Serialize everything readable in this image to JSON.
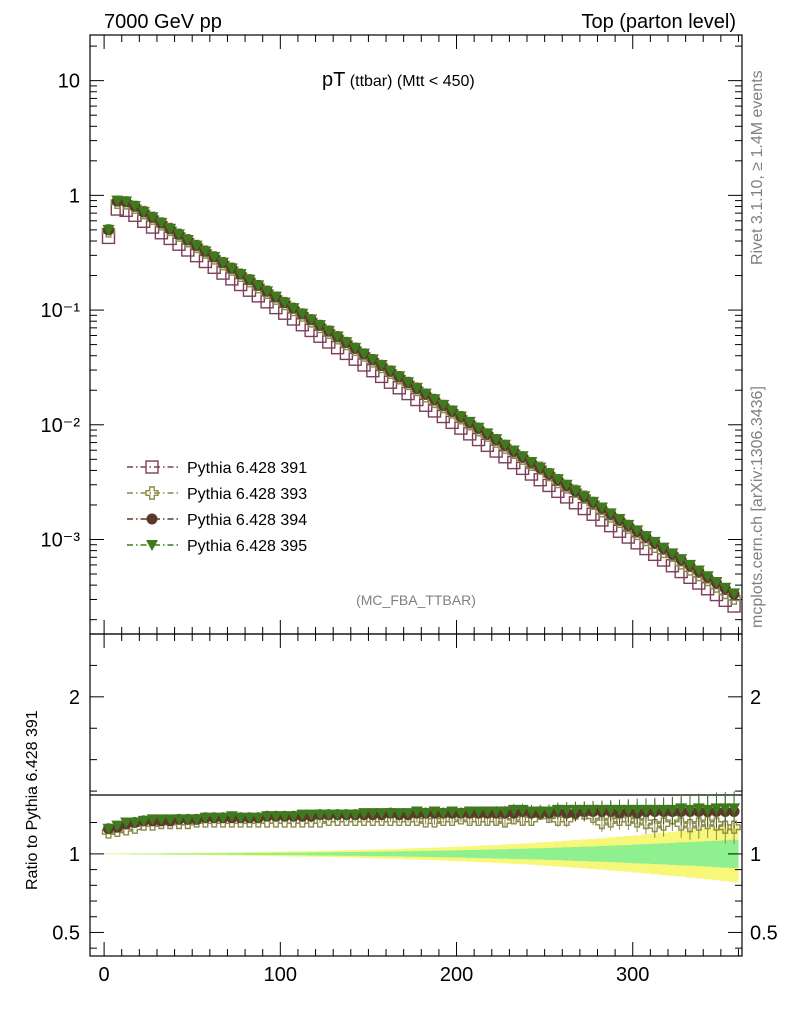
{
  "header": {
    "left": "7000 GeV pp",
    "right": "Top (parton level)"
  },
  "plot": {
    "title_main": "pT",
    "title_sub": " (ttbar) (Mtt < 450)",
    "analysis_tag": "(MC_FBA_TTBAR)",
    "side_text_1": "Rivet 3.1.10, ≥ 1.4M events",
    "side_text_2": "mcplots.cern.ch [arXiv:1306.3436]",
    "ratio_ylabel": "Ratio to Pythia 6.428 391"
  },
  "chart_data": [
    {
      "type": "scatter",
      "panel": "main",
      "yscale": "log",
      "xlim": [
        -8,
        362
      ],
      "ylim": [
        0.00015,
        25
      ],
      "ytick_labels": [
        "10",
        "1",
        "10⁻¹",
        "10⁻²",
        "10⁻³"
      ],
      "ytick_values": [
        10,
        1,
        0.1,
        0.01,
        0.001
      ],
      "legend_position": "lower-left",
      "x": [
        2.5,
        7.5,
        12.5,
        17.5,
        22.5,
        27.5,
        32.5,
        37.5,
        42.5,
        47.5,
        52.5,
        57.5,
        62.5,
        67.5,
        72.5,
        77.5,
        82.5,
        87.5,
        92.5,
        97.5,
        102.5,
        107.5,
        112.5,
        117.5,
        122.5,
        127.5,
        132.5,
        137.5,
        142.5,
        147.5,
        152.5,
        157.5,
        162.5,
        167.5,
        172.5,
        177.5,
        182.5,
        187.5,
        192.5,
        197.5,
        202.5,
        207.5,
        212.5,
        217.5,
        222.5,
        227.5,
        232.5,
        237.5,
        242.5,
        247.5,
        252.5,
        257.5,
        262.5,
        267.5,
        272.5,
        277.5,
        282.5,
        287.5,
        292.5,
        297.5,
        302.5,
        307.5,
        312.5,
        317.5,
        322.5,
        327.5,
        332.5,
        337.5,
        342.5,
        347.5,
        352.5,
        357.5
      ],
      "series": [
        {
          "name": "Pythia 6.428 391",
          "marker": "open-square",
          "color": "#7b3f5a",
          "values": [
            0.43,
            0.76,
            0.74,
            0.67,
            0.594,
            0.529,
            0.472,
            0.421,
            0.375,
            0.334,
            0.298,
            0.265,
            0.236,
            0.21,
            0.187,
            0.167,
            0.149,
            0.133,
            0.118,
            0.105,
            0.0939,
            0.0836,
            0.0745,
            0.0664,
            0.0592,
            0.0527,
            0.047,
            0.0419,
            0.0373,
            0.0332,
            0.0296,
            0.0264,
            0.0235,
            0.021,
            0.0187,
            0.0166,
            0.0148,
            0.0132,
            0.0118,
            0.0105,
            0.00935,
            0.00833,
            0.00743,
            0.00662,
            0.0059,
            0.00526,
            0.00468,
            0.00417,
            0.00372,
            0.00332,
            0.00296,
            0.00263,
            0.00235,
            0.00209,
            0.00186,
            0.00166,
            0.00148,
            0.00132,
            0.00118,
            0.00105,
            0.000935,
            0.000833,
            0.000742,
            0.000662,
            0.00059,
            0.000525,
            0.000468,
            0.000417,
            0.000372,
            0.000331,
            0.000295,
            0.000263
          ]
        },
        {
          "name": "Pythia 6.428 393",
          "marker": "open-cross",
          "color": "#8b8b4a",
          "values": [
            0.49,
            0.87,
            0.86,
            0.787,
            0.707,
            0.632,
            0.564,
            0.505,
            0.45,
            0.402,
            0.359,
            0.32,
            0.285,
            0.254,
            0.227,
            0.201,
            0.18,
            0.16,
            0.143,
            0.127,
            0.114,
            0.101,
            0.0905,
            0.0805,
            0.0718,
            0.0642,
            0.0573,
            0.0511,
            0.0455,
            0.0405,
            0.036,
            0.0322,
            0.0287,
            0.0257,
            0.0229,
            0.0203,
            0.0179,
            0.016,
            0.0144,
            0.0129,
            0.0115,
            0.0102,
            0.00905,
            0.00811,
            0.0072,
            0.00638,
            0.00575,
            0.00511,
            0.00453,
            0.00418,
            0.00367,
            0.0032,
            0.00287,
            0.00263,
            0.00234,
            0.00206,
            0.00178,
            0.0016,
            0.00144,
            0.00128,
            0.00113,
            0.001,
            0.000872,
            0.000786,
            0.000728,
            0.000624,
            0.000554,
            0.000495,
            0.000448,
            0.000393,
            0.000345,
            0.000308
          ]
        },
        {
          "name": "Pythia 6.428 394",
          "marker": "filled-circle",
          "color": "#5a3a28",
          "values": [
            0.5,
            0.89,
            0.878,
            0.801,
            0.718,
            0.642,
            0.573,
            0.511,
            0.457,
            0.408,
            0.365,
            0.325,
            0.291,
            0.259,
            0.231,
            0.206,
            0.184,
            0.164,
            0.146,
            0.13,
            0.116,
            0.104,
            0.0926,
            0.0825,
            0.0738,
            0.0658,
            0.0587,
            0.0523,
            0.0466,
            0.0415,
            0.0371,
            0.033,
            0.0295,
            0.0262,
            0.0234,
            0.0209,
            0.0186,
            0.0167,
            0.0148,
            0.0132,
            0.0118,
            0.0105,
            0.00937,
            0.00836,
            0.00744,
            0.00664,
            0.00591,
            0.00528,
            0.0047,
            0.00419,
            0.00374,
            0.00333,
            0.00297,
            0.00264,
            0.00236,
            0.00211,
            0.00188,
            0.00167,
            0.00149,
            0.00133,
            0.00118,
            0.00106,
            0.000939,
            0.000838,
            0.000748,
            0.000666,
            0.000593,
            0.000528,
            0.000471,
            0.00042,
            0.000375,
            0.000334
          ]
        },
        {
          "name": "Pythia 6.428 395",
          "marker": "filled-triangle-down",
          "color": "#3f7a1f",
          "values": [
            0.5,
            0.9,
            0.885,
            0.806,
            0.72,
            0.644,
            0.575,
            0.512,
            0.457,
            0.408,
            0.365,
            0.325,
            0.29,
            0.259,
            0.231,
            0.206,
            0.184,
            0.164,
            0.146,
            0.131,
            0.116,
            0.104,
            0.0928,
            0.0828,
            0.0739,
            0.0659,
            0.0588,
            0.0524,
            0.0468,
            0.0417,
            0.0372,
            0.0332,
            0.0296,
            0.0264,
            0.0235,
            0.021,
            0.0187,
            0.0167,
            0.0149,
            0.0133,
            0.0118,
            0.0106,
            0.00943,
            0.00841,
            0.0075,
            0.00669,
            0.00597,
            0.00532,
            0.00474,
            0.00423,
            0.00377,
            0.00336,
            0.003,
            0.00267,
            0.00238,
            0.00213,
            0.0019,
            0.00169,
            0.00151,
            0.00134,
            0.0012,
            0.00107,
            0.000953,
            0.000849,
            0.000757,
            0.000675,
            0.000601,
            0.000536,
            0.000478,
            0.000426,
            0.00038,
            0.000339
          ]
        }
      ]
    },
    {
      "type": "scatter",
      "panel": "ratio",
      "ylabel": "Ratio to Pythia 6.428 391",
      "xlim": [
        -8,
        362
      ],
      "ylim": [
        0.35,
        2.4
      ],
      "ytick_labels": [
        "2",
        "1",
        "0.5"
      ],
      "ytick_values": [
        2,
        1,
        0.5
      ],
      "xtick_labels": [
        "0",
        "100",
        "200",
        "300"
      ],
      "xtick_values": [
        0,
        100,
        200,
        300
      ],
      "reference_line": 1,
      "band_colors": [
        "#f7f77a",
        "#8ef08e"
      ],
      "band_outer_halfwidth": [
        0.002,
        0.002,
        0.003,
        0.003,
        0.004,
        0.004,
        0.005,
        0.005,
        0.006,
        0.006,
        0.007,
        0.007,
        0.008,
        0.009,
        0.009,
        0.01,
        0.011,
        0.012,
        0.013,
        0.014,
        0.015,
        0.016,
        0.017,
        0.018,
        0.019,
        0.02,
        0.022,
        0.023,
        0.024,
        0.026,
        0.027,
        0.029,
        0.03,
        0.032,
        0.034,
        0.036,
        0.038,
        0.04,
        0.042,
        0.044,
        0.047,
        0.049,
        0.052,
        0.054,
        0.057,
        0.06,
        0.063,
        0.066,
        0.069,
        0.073,
        0.076,
        0.08,
        0.084,
        0.088,
        0.092,
        0.096,
        0.1,
        0.105,
        0.11,
        0.114,
        0.119,
        0.124,
        0.13,
        0.135,
        0.14,
        0.145,
        0.151,
        0.156,
        0.162,
        0.168,
        0.174,
        0.18
      ],
      "band_inner_halfwidth": [
        0.001,
        0.001,
        0.001,
        0.002,
        0.002,
        0.002,
        0.002,
        0.003,
        0.003,
        0.003,
        0.003,
        0.004,
        0.004,
        0.004,
        0.005,
        0.005,
        0.006,
        0.006,
        0.006,
        0.007,
        0.007,
        0.008,
        0.008,
        0.009,
        0.01,
        0.01,
        0.011,
        0.012,
        0.012,
        0.013,
        0.014,
        0.014,
        0.015,
        0.016,
        0.017,
        0.018,
        0.019,
        0.02,
        0.021,
        0.022,
        0.023,
        0.025,
        0.026,
        0.027,
        0.029,
        0.03,
        0.032,
        0.033,
        0.035,
        0.036,
        0.038,
        0.04,
        0.042,
        0.044,
        0.046,
        0.048,
        0.05,
        0.052,
        0.055,
        0.057,
        0.06,
        0.062,
        0.065,
        0.067,
        0.07,
        0.073,
        0.075,
        0.078,
        0.081,
        0.084,
        0.087,
        0.09
      ],
      "series": [
        {
          "name": "Pythia 6.428 393",
          "values": [
            1.14,
            1.15,
            1.16,
            1.17,
            1.19,
            1.19,
            1.2,
            1.2,
            1.2,
            1.2,
            1.21,
            1.21,
            1.21,
            1.21,
            1.21,
            1.21,
            1.21,
            1.21,
            1.21,
            1.21,
            1.21,
            1.21,
            1.21,
            1.21,
            1.21,
            1.22,
            1.22,
            1.22,
            1.22,
            1.22,
            1.22,
            1.22,
            1.22,
            1.22,
            1.22,
            1.22,
            1.21,
            1.21,
            1.22,
            1.22,
            1.23,
            1.22,
            1.22,
            1.22,
            1.22,
            1.21,
            1.23,
            1.22,
            1.22,
            1.26,
            1.24,
            1.22,
            1.22,
            1.26,
            1.26,
            1.24,
            1.2,
            1.21,
            1.22,
            1.22,
            1.21,
            1.2,
            1.18,
            1.19,
            1.23,
            1.19,
            1.18,
            1.19,
            1.2,
            1.19,
            1.17,
            1.17
          ]
        },
        {
          "name": "Pythia 6.428 394",
          "values": [
            1.16,
            1.17,
            1.19,
            1.2,
            1.21,
            1.21,
            1.21,
            1.21,
            1.22,
            1.22,
            1.22,
            1.23,
            1.23,
            1.23,
            1.23,
            1.23,
            1.23,
            1.23,
            1.24,
            1.24,
            1.24,
            1.24,
            1.24,
            1.24,
            1.25,
            1.25,
            1.25,
            1.25,
            1.25,
            1.25,
            1.25,
            1.25,
            1.26,
            1.25,
            1.25,
            1.26,
            1.26,
            1.26,
            1.26,
            1.26,
            1.26,
            1.26,
            1.26,
            1.26,
            1.26,
            1.26,
            1.26,
            1.27,
            1.26,
            1.26,
            1.26,
            1.27,
            1.26,
            1.26,
            1.27,
            1.27,
            1.27,
            1.27,
            1.26,
            1.27,
            1.26,
            1.27,
            1.27,
            1.27,
            1.27,
            1.27,
            1.27,
            1.27,
            1.27,
            1.27,
            1.27,
            1.27
          ]
        },
        {
          "name": "Pythia 6.428 395",
          "values": [
            1.16,
            1.18,
            1.2,
            1.2,
            1.21,
            1.22,
            1.22,
            1.22,
            1.22,
            1.22,
            1.22,
            1.23,
            1.23,
            1.23,
            1.24,
            1.23,
            1.23,
            1.23,
            1.24,
            1.24,
            1.24,
            1.24,
            1.25,
            1.25,
            1.25,
            1.25,
            1.25,
            1.25,
            1.25,
            1.26,
            1.26,
            1.26,
            1.26,
            1.26,
            1.26,
            1.27,
            1.26,
            1.27,
            1.26,
            1.27,
            1.26,
            1.27,
            1.27,
            1.27,
            1.27,
            1.27,
            1.28,
            1.28,
            1.27,
            1.27,
            1.27,
            1.28,
            1.28,
            1.28,
            1.28,
            1.28,
            1.28,
            1.28,
            1.28,
            1.28,
            1.28,
            1.28,
            1.28,
            1.28,
            1.28,
            1.29,
            1.28,
            1.29,
            1.28,
            1.29,
            1.29,
            1.29
          ]
        }
      ]
    }
  ]
}
